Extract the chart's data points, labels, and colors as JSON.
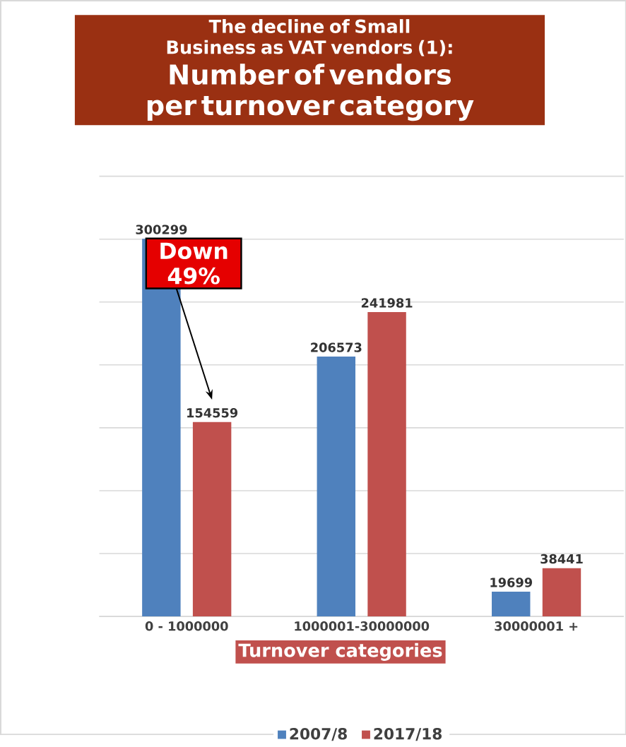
{
  "chart_data": {
    "type": "bar",
    "title": "The decline of Small Business as VAT vendors (1):",
    "subtitle": "Number of vendors per turnover category",
    "xlabel": "Turnover categories",
    "categories": [
      "0 - 1000000",
      "1000001-30000000",
      "30000001 +"
    ],
    "series": [
      {
        "name": "2007/8",
        "color": "#4f81bd",
        "values": [
          300299,
          206573,
          19699
        ]
      },
      {
        "name": "2017/18",
        "color": "#c0504d",
        "values": [
          154559,
          241981,
          38441
        ]
      }
    ],
    "ylim": [
      0,
      350000
    ],
    "yticks": [
      {
        "value": 0,
        "label": null
      },
      {
        "value": 50000,
        "label": null
      },
      {
        "value": 100000,
        "label": null
      },
      {
        "value": 150000,
        "label": null
      },
      {
        "value": 200000,
        "label": null
      },
      {
        "value": 250000,
        "label": null
      },
      {
        "value": 300000,
        "label": null
      },
      {
        "value": 350000,
        "label": null
      }
    ],
    "tick_labels": "x",
    "grid": "y",
    "legend": "bottom",
    "data_labels": true,
    "annotations": [
      "Down 49%"
    ]
  }
}
